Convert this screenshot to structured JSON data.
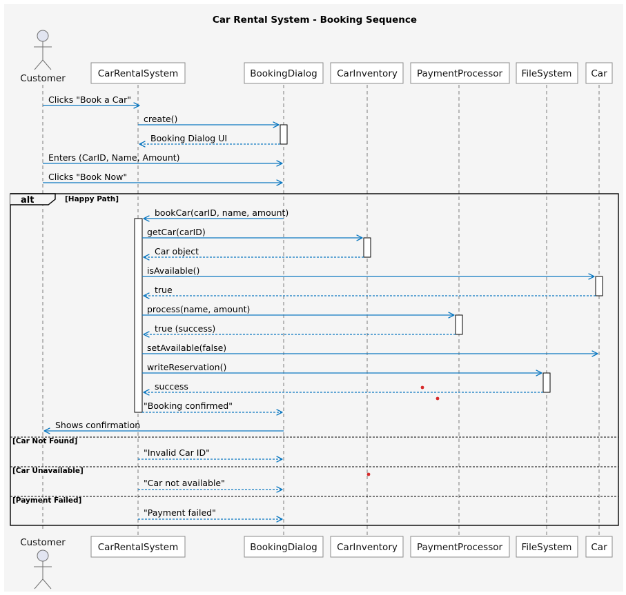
{
  "title": "Car Rental System - Booking Sequence",
  "colors": {
    "background": "#f5f5f5",
    "message": "#0b77c0",
    "actor_fill": "#e2e5f1",
    "dot": "#d62a2a"
  },
  "participants": [
    {
      "id": "customer",
      "label": "Customer",
      "kind": "actor"
    },
    {
      "id": "crs",
      "label": "CarRentalSystem",
      "kind": "participant"
    },
    {
      "id": "dialog",
      "label": "BookingDialog",
      "kind": "participant"
    },
    {
      "id": "inventory",
      "label": "CarInventory",
      "kind": "participant"
    },
    {
      "id": "payment",
      "label": "PaymentProcessor",
      "kind": "participant"
    },
    {
      "id": "fs",
      "label": "FileSystem",
      "kind": "participant"
    },
    {
      "id": "car",
      "label": "Car",
      "kind": "participant"
    }
  ],
  "messages": [
    {
      "from": "customer",
      "to": "crs",
      "label": "Clicks \"Book a Car\"",
      "kind": "sync"
    },
    {
      "from": "crs",
      "to": "dialog",
      "label": "create()",
      "kind": "sync"
    },
    {
      "from": "dialog",
      "to": "crs",
      "label": "Booking Dialog UI",
      "kind": "return"
    },
    {
      "from": "customer",
      "to": "dialog",
      "label": "Enters (CarID, Name, Amount)",
      "kind": "sync"
    },
    {
      "from": "customer",
      "to": "dialog",
      "label": "Clicks \"Book Now\"",
      "kind": "sync"
    },
    {
      "from": "dialog",
      "to": "crs",
      "label": "bookCar(carID, name, amount)",
      "kind": "sync"
    },
    {
      "from": "crs",
      "to": "inventory",
      "label": "getCar(carID)",
      "kind": "sync"
    },
    {
      "from": "inventory",
      "to": "crs",
      "label": "Car object",
      "kind": "return"
    },
    {
      "from": "crs",
      "to": "car",
      "label": "isAvailable()",
      "kind": "sync"
    },
    {
      "from": "car",
      "to": "crs",
      "label": "true",
      "kind": "return"
    },
    {
      "from": "crs",
      "to": "payment",
      "label": "process(name, amount)",
      "kind": "sync"
    },
    {
      "from": "payment",
      "to": "crs",
      "label": "true (success)",
      "kind": "return"
    },
    {
      "from": "crs",
      "to": "car",
      "label": "setAvailable(false)",
      "kind": "sync"
    },
    {
      "from": "crs",
      "to": "fs",
      "label": "writeReservation()",
      "kind": "sync"
    },
    {
      "from": "fs",
      "to": "crs",
      "label": "success",
      "kind": "return"
    },
    {
      "from": "crs",
      "to": "dialog",
      "label": "\"Booking confirmed\"",
      "kind": "return"
    },
    {
      "from": "dialog",
      "to": "customer",
      "label": "Shows confirmation",
      "kind": "sync"
    },
    {
      "from": "crs",
      "to": "dialog",
      "label": "\"Invalid Car ID\"",
      "kind": "return"
    },
    {
      "from": "crs",
      "to": "dialog",
      "label": "\"Car not available\"",
      "kind": "return"
    },
    {
      "from": "crs",
      "to": "dialog",
      "label": "\"Payment failed\"",
      "kind": "return"
    }
  ],
  "fragment": {
    "operator": "alt",
    "sections": [
      {
        "guard": "[Happy Path]"
      },
      {
        "guard": "[Car Not Found]"
      },
      {
        "guard": "[Car Unavailable]"
      },
      {
        "guard": "[Payment Failed]"
      }
    ]
  }
}
